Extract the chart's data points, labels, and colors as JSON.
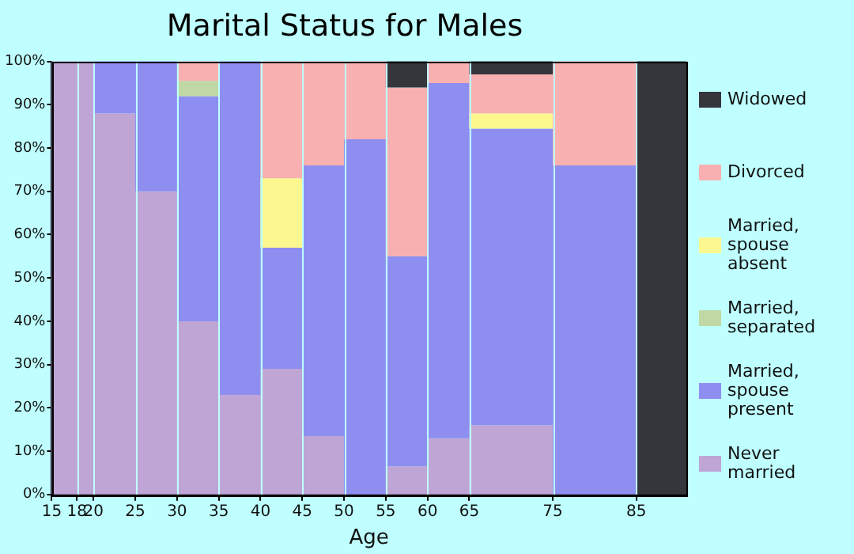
{
  "chart_data": {
    "type": "bar",
    "stacked": true,
    "title": "Marital Status for Males",
    "xlabel": "Age",
    "x": [
      16.5,
      19,
      22.5,
      27.5,
      32.5,
      37.5,
      42.5,
      47.5,
      52.5,
      57.5,
      62.5,
      70,
      80,
      88
    ],
    "xlim": [
      15,
      91
    ],
    "xticks": [
      15,
      18,
      20,
      25,
      30,
      35,
      40,
      45,
      50,
      55,
      60,
      65,
      75,
      85
    ],
    "ylim": [
      0,
      100
    ],
    "yticks": [
      {
        "value": 0,
        "label": "0%"
      },
      {
        "value": 10,
        "label": "10%"
      },
      {
        "value": 20,
        "label": "20%"
      },
      {
        "value": 30,
        "label": "30%"
      },
      {
        "value": 40,
        "label": "40%"
      },
      {
        "value": 50,
        "label": "50%"
      },
      {
        "value": 60,
        "label": "60%"
      },
      {
        "value": 70,
        "label": "70%"
      },
      {
        "value": 80,
        "label": "80%"
      },
      {
        "value": 90,
        "label": "90%"
      },
      {
        "value": 100,
        "label": "100%"
      }
    ],
    "grid": "x",
    "legend": "right",
    "series": [
      {
        "name": "Never married",
        "color": "#bfa5d6",
        "values": [
          100,
          100,
          88,
          70,
          40,
          23,
          29,
          13.5,
          0,
          6.5,
          13,
          16,
          0,
          0
        ]
      },
      {
        "name": "Married, spouse present",
        "color": "#8e8ef0",
        "values": [
          0,
          0,
          12,
          30,
          52,
          77,
          28,
          62.5,
          82,
          48.5,
          82,
          68.5,
          76,
          0
        ]
      },
      {
        "name": "Married, separated",
        "color": "#c0d9a4",
        "values": [
          0,
          0,
          0,
          0,
          3.5,
          0,
          0,
          0,
          0,
          0,
          0,
          0,
          0,
          0
        ]
      },
      {
        "name": "Married, spouse absent",
        "color": "#fdf78f",
        "values": [
          0,
          0,
          0,
          0,
          0,
          0,
          16,
          0,
          0,
          0,
          0,
          3.5,
          0,
          0
        ]
      },
      {
        "name": "Divorced",
        "color": "#f8b0b0",
        "values": [
          0,
          0,
          0,
          0,
          4.5,
          0,
          27,
          24,
          18,
          39,
          5,
          9,
          24,
          0
        ]
      },
      {
        "name": "Widowed",
        "color": "#35363c",
        "values": [
          0,
          0,
          0,
          0,
          0,
          0,
          0,
          0,
          0,
          6,
          0,
          3,
          0,
          100
        ]
      }
    ]
  }
}
